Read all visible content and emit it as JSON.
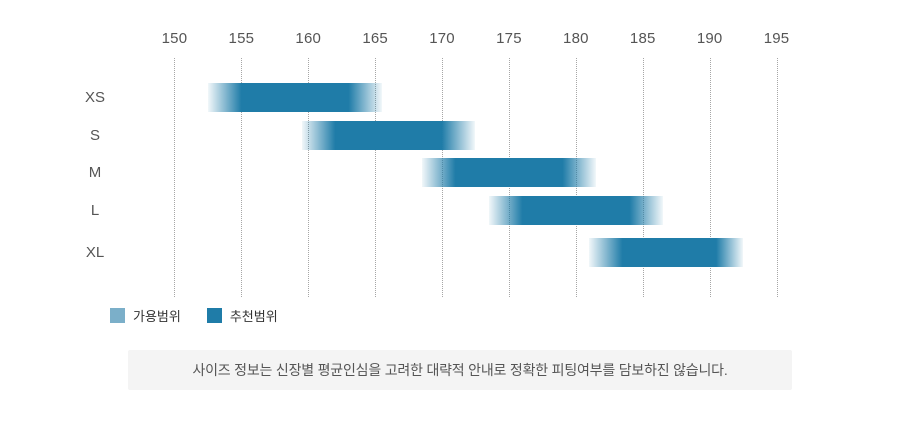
{
  "chart_data": {
    "type": "bar",
    "orientation": "horizontal",
    "title": "",
    "x_axis": {
      "position": "top",
      "min": 147.5,
      "max": 197.5,
      "ticks": [
        150,
        155,
        160,
        165,
        170,
        175,
        180,
        185,
        190,
        195
      ]
    },
    "categories": [
      "XS",
      "S",
      "M",
      "L",
      "XL"
    ],
    "series": [
      {
        "name": "가용범위",
        "color": "#7bafc9",
        "ranges": [
          [
            152.5,
            165.5
          ],
          [
            159.5,
            172.5
          ],
          [
            168.5,
            181.5
          ],
          [
            173.5,
            186.5
          ],
          [
            181.0,
            192.5
          ]
        ]
      },
      {
        "name": "추천범위",
        "color": "#1f7ca8",
        "ranges": [
          [
            155.0,
            163.0
          ],
          [
            162.0,
            170.0
          ],
          [
            171.0,
            179.0
          ],
          [
            176.0,
            184.0
          ],
          [
            183.5,
            190.5
          ]
        ]
      }
    ],
    "grid": "dotted-vertical",
    "legend_position": "bottom-left"
  },
  "legend": {
    "items": [
      {
        "label": "가용범위",
        "color": "#7bafc9"
      },
      {
        "label": "추천범위",
        "color": "#1f7ca8"
      }
    ]
  },
  "footnote": {
    "text": "사이즈 정보는 신장별 평균인심을 고려한 대략적 안내로 정확한 피팅여부를 담보하진 않습니다."
  }
}
